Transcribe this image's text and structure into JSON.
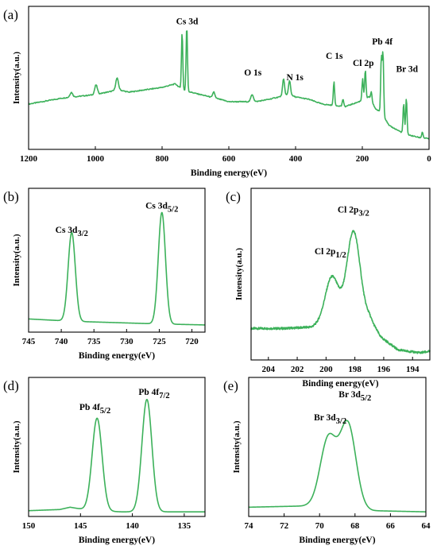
{
  "colors": {
    "line": "#3cb15a",
    "axis": "#000000",
    "background": "#ffffff"
  },
  "chart_data": [
    {
      "id": "a",
      "panel_label": "(a)",
      "type": "line",
      "xlabel": "Binding energy(eV)",
      "ylabel": "Intensity(a.u.)",
      "xlim": [
        1200,
        0
      ],
      "x_reversed": true,
      "xticks": [
        1200,
        1000,
        800,
        600,
        400,
        200,
        0
      ],
      "y_scale": "arbitrary units (no tick labels)",
      "baseline": [
        [
          1200,
          0.38
        ],
        [
          1100,
          0.43
        ],
        [
          1000,
          0.46
        ],
        [
          930,
          0.5
        ],
        [
          900,
          0.48
        ],
        [
          800,
          0.52
        ],
        [
          760,
          0.55
        ],
        [
          740,
          0.5
        ],
        [
          700,
          0.47
        ],
        [
          640,
          0.43
        ],
        [
          600,
          0.4
        ],
        [
          520,
          0.4
        ],
        [
          480,
          0.42
        ],
        [
          450,
          0.44
        ],
        [
          420,
          0.46
        ],
        [
          400,
          0.44
        ],
        [
          360,
          0.42
        ],
        [
          320,
          0.38
        ],
        [
          290,
          0.37
        ],
        [
          250,
          0.36
        ],
        [
          210,
          0.4
        ],
        [
          180,
          0.44
        ],
        [
          160,
          0.34
        ],
        [
          140,
          0.3
        ],
        [
          120,
          0.2
        ],
        [
          100,
          0.17
        ],
        [
          80,
          0.14
        ],
        [
          60,
          0.12
        ],
        [
          30,
          0.1
        ],
        [
          0,
          0.09
        ]
      ],
      "peaks": [
        {
          "x": 1072,
          "h": 0.04,
          "w": 4
        },
        {
          "x": 998,
          "h": 0.08,
          "w": 4
        },
        {
          "x": 935,
          "h": 0.1,
          "w": 4
        },
        {
          "x": 740,
          "h": 0.48,
          "w": 2
        },
        {
          "x": 726,
          "h": 0.55,
          "w": 2
        },
        {
          "x": 645,
          "h": 0.05,
          "w": 3
        },
        {
          "x": 530,
          "h": 0.06,
          "w": 4
        },
        {
          "x": 436,
          "h": 0.14,
          "w": 3
        },
        {
          "x": 418,
          "h": 0.12,
          "w": 3
        },
        {
          "x": 285,
          "h": 0.2,
          "w": 2
        },
        {
          "x": 258,
          "h": 0.06,
          "w": 2
        },
        {
          "x": 199,
          "h": 0.18,
          "w": 2
        },
        {
          "x": 191,
          "h": 0.24,
          "w": 2
        },
        {
          "x": 173,
          "h": 0.08,
          "w": 2
        },
        {
          "x": 143,
          "h": 0.46,
          "w": 2
        },
        {
          "x": 138,
          "h": 0.52,
          "w": 2
        },
        {
          "x": 76,
          "h": 0.25,
          "w": 2
        },
        {
          "x": 68,
          "h": 0.3,
          "w": 2
        },
        {
          "x": 20,
          "h": 0.05,
          "w": 2
        }
      ],
      "annotations": [
        {
          "text": "Cs 3d",
          "x": 725,
          "y": 1.05
        },
        {
          "text": "O 1s",
          "x": 528,
          "y": 0.62
        },
        {
          "text": "N 1s",
          "x": 402,
          "y": 0.58
        },
        {
          "text": "C 1s",
          "x": 284,
          "y": 0.76
        },
        {
          "text": "Cl 2p",
          "x": 197,
          "y": 0.7
        },
        {
          "text": "Pb 4f",
          "x": 140,
          "y": 0.88
        },
        {
          "text": "Br 3d",
          "x": 66,
          "y": 0.65
        }
      ]
    },
    {
      "id": "b",
      "panel_label": "(b)",
      "type": "line",
      "xlabel": "Binding energy(eV)",
      "ylabel": "Intensity(a.u.)",
      "xlim": [
        745,
        718
      ],
      "x_reversed": true,
      "xticks": [
        745,
        740,
        735,
        730,
        725,
        720
      ],
      "baseline": [
        [
          745,
          0.11
        ],
        [
          738,
          0.09
        ],
        [
          732,
          0.08
        ],
        [
          726,
          0.07
        ],
        [
          718,
          0.06
        ]
      ],
      "peaks": [
        {
          "x": 738.4,
          "h": 0.74,
          "w": 0.55
        },
        {
          "x": 724.6,
          "h": 0.93,
          "w": 0.55
        }
      ],
      "annotations": [
        {
          "text": "Cs 3d",
          "sub": "3/2",
          "x": 738.4,
          "y": 0.83
        },
        {
          "text": "Cs 3d",
          "sub": "5/2",
          "x": 724.6,
          "y": 1.03
        }
      ]
    },
    {
      "id": "c",
      "panel_label": "(c)",
      "type": "line",
      "xlabel": "Binding energy(eV)",
      "ylabel": "Intensity(a.u.)",
      "xlim": [
        205.2,
        192.8
      ],
      "x_reversed": true,
      "xticks": [
        204,
        202,
        200,
        198,
        196,
        194
      ],
      "baseline": [
        [
          205.2,
          0.22
        ],
        [
          203,
          0.22
        ],
        [
          201,
          0.23
        ],
        [
          200.3,
          0.26
        ],
        [
          199,
          0.3
        ],
        [
          197,
          0.3
        ],
        [
          196.2,
          0.16
        ],
        [
          195,
          0.07
        ],
        [
          193.5,
          0.05
        ],
        [
          192.8,
          0.06
        ]
      ],
      "peaks": [
        {
          "x": 199.6,
          "h": 0.3,
          "w": 0.45
        },
        {
          "x": 198.1,
          "h": 0.6,
          "w": 0.45
        }
      ],
      "noise": 0.015,
      "annotations": [
        {
          "text": "Cl 2p",
          "sub": "1/2",
          "x": 199.7,
          "y": 0.74
        },
        {
          "text": "Cl 2p",
          "sub": "3/2",
          "x": 198.1,
          "y": 1.03
        }
      ]
    },
    {
      "id": "d",
      "panel_label": "(d)",
      "type": "line",
      "xlabel": "Binding energy(eV)",
      "ylabel": "Intensity(a.u.)",
      "xlim": [
        150,
        133
      ],
      "x_reversed": true,
      "xticks": [
        150,
        145,
        140,
        135
      ],
      "baseline": [
        [
          150,
          0.05
        ],
        [
          147,
          0.06
        ],
        [
          146,
          0.08
        ],
        [
          144,
          0.05
        ],
        [
          141,
          0.04
        ],
        [
          136,
          0.04
        ],
        [
          133,
          0.04
        ]
      ],
      "peaks": [
        {
          "x": 143.4,
          "h": 0.8,
          "w": 0.48
        },
        {
          "x": 138.6,
          "h": 0.97,
          "w": 0.48
        }
      ],
      "annotations": [
        {
          "text": "Pb 4f",
          "sub": "5/2",
          "x": 143.6,
          "y": 0.92
        },
        {
          "text": "Pb 4f",
          "sub": "7/2",
          "x": 137.9,
          "y": 1.05
        }
      ]
    },
    {
      "id": "e",
      "panel_label": "(e)",
      "type": "line",
      "xlabel": "Binding energy(eV)",
      "ylabel": "Intensity(a.u.)",
      "xlim": [
        74,
        64
      ],
      "x_reversed": true,
      "xticks": [
        74,
        72,
        70,
        68,
        66,
        64
      ],
      "baseline": [
        [
          74,
          0.08
        ],
        [
          71,
          0.09
        ],
        [
          70,
          0.1
        ],
        [
          67,
          0.05
        ],
        [
          64,
          0.04
        ]
      ],
      "peaks": [
        {
          "x": 69.5,
          "h": 0.58,
          "w": 0.45
        },
        {
          "x": 68.4,
          "h": 0.72,
          "w": 0.45
        }
      ],
      "annotations": [
        {
          "text": "Br 3d",
          "sub": "3/2",
          "x": 69.4,
          "y": 0.83
        },
        {
          "text": "Br 3d",
          "sub": "5/2",
          "x": 68.0,
          "y": 1.03
        }
      ]
    }
  ]
}
